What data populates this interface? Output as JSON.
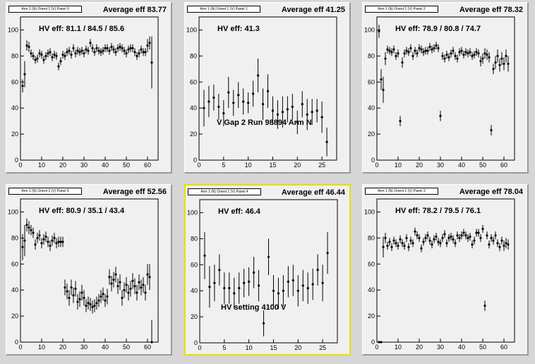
{
  "pads": [
    {
      "title": "Arm 1 (N) Orient 1 (V) Panel 0",
      "average": "Average eff 83.77",
      "hv": "HV eff:   81.1 / 84.5 / 85.6",
      "annotation": "",
      "selected": false,
      "xmax": 65,
      "xticks": [
        0,
        10,
        20,
        30,
        40,
        50,
        60
      ],
      "yticks": [
        0,
        20,
        40,
        60,
        80,
        100
      ]
    },
    {
      "title": "Arm 1 (N) Orient 1 (V) Panel 1",
      "average": "Average eff 41.25",
      "hv": "HV eff:   41.3",
      "annotation": "V Gap 2 Run 98894 Arm N",
      "selected": false,
      "xmax": 28,
      "xticks": [
        0,
        5,
        10,
        15,
        20,
        25
      ],
      "yticks": [
        0,
        20,
        40,
        60,
        80,
        100
      ]
    },
    {
      "title": "Arm 1 (N) Orient 1 (V) Panel 2",
      "average": "Average eff 78.32",
      "hv": "HV eff:   78.9 / 80.8 / 74.7",
      "annotation": "",
      "selected": false,
      "xmax": 65,
      "xticks": [
        0,
        10,
        20,
        30,
        40,
        50,
        60
      ],
      "yticks": [
        0,
        20,
        40,
        60,
        80,
        100
      ]
    },
    {
      "title": "Arm 1 (N) Orient 1 (V) Panel 5",
      "average": "Average eff 52.56",
      "hv": "HV eff:   80.9 / 35.1 / 43.4",
      "annotation": "",
      "selected": false,
      "xmax": 65,
      "xticks": [
        0,
        10,
        20,
        30,
        40,
        50,
        60
      ],
      "yticks": [
        0,
        20,
        40,
        60,
        80,
        100
      ]
    },
    {
      "title": "Arm 1 (N) Orient 1 (V) Panel 4",
      "average": "Average eff 46.44",
      "hv": "HV eff:   46.4",
      "annotation": "HV setting 4100 V",
      "selected": true,
      "xmax": 28,
      "xticks": [
        0,
        5,
        10,
        15,
        20,
        25
      ],
      "yticks": [
        0,
        20,
        40,
        60,
        80,
        100
      ]
    },
    {
      "title": "Arm 1 (N) Orient 1 (V) Panel 3",
      "average": "Average eff 78.04",
      "hv": "HV eff:   78.2 / 79.5 / 76.1",
      "annotation": "",
      "selected": false,
      "xmax": 65,
      "xticks": [
        0,
        10,
        20,
        30,
        40,
        50,
        60
      ],
      "yticks": [
        0,
        20,
        40,
        60,
        80,
        100
      ]
    }
  ],
  "chart_data": [
    {
      "type": "scatter",
      "title": "Average eff 83.77",
      "xlim": [
        0,
        65
      ],
      "ylim": [
        0,
        110
      ],
      "x": [
        1,
        2,
        3,
        4,
        5,
        6,
        7,
        8,
        9,
        10,
        11,
        12,
        13,
        14,
        15,
        16,
        17,
        18,
        19,
        20,
        21,
        22,
        23,
        24,
        25,
        26,
        27,
        28,
        29,
        30,
        31,
        32,
        33,
        34,
        35,
        36,
        37,
        38,
        39,
        40,
        41,
        42,
        43,
        44,
        45,
        46,
        47,
        48,
        49,
        50,
        51,
        52,
        53,
        54,
        55,
        56,
        57,
        58,
        59,
        60,
        61,
        62
      ],
      "y": [
        57,
        66,
        88,
        87,
        82,
        80,
        77,
        78,
        82,
        81,
        77,
        80,
        82,
        83,
        79,
        81,
        80,
        72,
        76,
        81,
        80,
        83,
        84,
        81,
        86,
        82,
        84,
        83,
        84,
        82,
        85,
        84,
        90,
        86,
        83,
        86,
        84,
        83,
        84,
        86,
        86,
        84,
        87,
        85,
        83,
        86,
        87,
        86,
        84,
        82,
        85,
        86,
        86,
        83,
        80,
        82,
        85,
        83,
        83,
        88,
        90,
        75
      ],
      "yerr": [
        5,
        10,
        4,
        4,
        3,
        3,
        3,
        3,
        3,
        3,
        3,
        3,
        3,
        3,
        3,
        3,
        3,
        3,
        3,
        3,
        3,
        3,
        3,
        3,
        3,
        3,
        3,
        3,
        3,
        3,
        3,
        3,
        3,
        3,
        3,
        3,
        3,
        3,
        3,
        3,
        3,
        3,
        3,
        3,
        3,
        3,
        3,
        3,
        3,
        3,
        3,
        3,
        3,
        3,
        3,
        3,
        3,
        3,
        3,
        5,
        5,
        20
      ]
    },
    {
      "type": "scatter",
      "title": "Average eff 41.25",
      "xlim": [
        0,
        28
      ],
      "ylim": [
        0,
        110
      ],
      "x": [
        1,
        2,
        3,
        4,
        5,
        6,
        7,
        8,
        9,
        10,
        11,
        12,
        13,
        14,
        15,
        16,
        17,
        18,
        19,
        20,
        21,
        22,
        23,
        24,
        25,
        26
      ],
      "y": [
        40,
        45,
        48,
        41,
        36,
        52,
        44,
        50,
        45,
        44,
        51,
        65,
        43,
        53,
        38,
        35,
        37,
        39,
        41,
        29,
        43,
        35,
        37,
        38,
        33,
        14
      ],
      "yerr": [
        14,
        12,
        10,
        10,
        10,
        12,
        10,
        10,
        10,
        8,
        10,
        13,
        12,
        13,
        11,
        11,
        12,
        10,
        10,
        9,
        10,
        12,
        10,
        9,
        12,
        11
      ]
    },
    {
      "type": "scatter",
      "title": "Average eff 78.32",
      "xlim": [
        0,
        65
      ],
      "ylim": [
        0,
        110
      ],
      "x": [
        1,
        2,
        3,
        4,
        5,
        6,
        7,
        8,
        9,
        10,
        11,
        12,
        13,
        14,
        15,
        16,
        17,
        18,
        19,
        20,
        21,
        22,
        23,
        24,
        25,
        26,
        27,
        28,
        29,
        30,
        31,
        32,
        33,
        34,
        35,
        36,
        37,
        38,
        39,
        40,
        41,
        42,
        43,
        44,
        45,
        46,
        47,
        48,
        49,
        50,
        51,
        52,
        53,
        54,
        55,
        56,
        57,
        58,
        59,
        60,
        61,
        62
      ],
      "y": [
        99,
        62,
        54,
        78,
        85,
        84,
        83,
        85,
        80,
        82,
        30,
        75,
        82,
        84,
        83,
        86,
        80,
        84,
        82,
        86,
        85,
        83,
        84,
        84,
        87,
        85,
        86,
        88,
        86,
        34,
        80,
        78,
        81,
        79,
        82,
        84,
        80,
        78,
        83,
        84,
        81,
        83,
        82,
        83,
        80,
        81,
        83,
        82,
        76,
        78,
        82,
        81,
        79,
        23,
        70,
        75,
        80,
        73,
        78,
        74,
        80,
        74
      ],
      "yerr": [
        5,
        8,
        10,
        5,
        3,
        3,
        3,
        3,
        3,
        3,
        4,
        4,
        3,
        3,
        3,
        3,
        3,
        3,
        3,
        3,
        3,
        3,
        3,
        3,
        3,
        3,
        3,
        3,
        3,
        4,
        3,
        3,
        3,
        3,
        3,
        3,
        3,
        3,
        3,
        3,
        3,
        3,
        3,
        3,
        3,
        3,
        3,
        3,
        4,
        4,
        4,
        4,
        4,
        4,
        4,
        5,
        5,
        5,
        5,
        5,
        5,
        6
      ]
    },
    {
      "type": "scatter",
      "title": "Average eff 52.56",
      "xlim": [
        0,
        65
      ],
      "ylim": [
        0,
        110
      ],
      "x": [
        1,
        2,
        3,
        4,
        5,
        6,
        7,
        8,
        9,
        10,
        11,
        12,
        13,
        14,
        15,
        16,
        17,
        18,
        19,
        20,
        21,
        22,
        23,
        24,
        25,
        26,
        27,
        28,
        29,
        30,
        31,
        32,
        33,
        34,
        35,
        36,
        37,
        38,
        39,
        40,
        41,
        42,
        43,
        44,
        45,
        46,
        47,
        48,
        49,
        50,
        51,
        52,
        53,
        54,
        55,
        56,
        57,
        58,
        59,
        60,
        61,
        62
      ],
      "y": [
        73,
        78,
        90,
        88,
        86,
        84,
        75,
        80,
        82,
        76,
        79,
        81,
        77,
        74,
        78,
        80,
        76,
        77,
        77,
        77,
        42,
        39,
        34,
        42,
        36,
        41,
        31,
        33,
        38,
        34,
        28,
        30,
        29,
        27,
        28,
        30,
        32,
        35,
        37,
        32,
        35,
        50,
        45,
        48,
        52,
        43,
        46,
        34,
        40,
        44,
        38,
        41,
        47,
        43,
        38,
        46,
        42,
        44,
        38,
        52,
        50,
        0
      ],
      "yerr": [
        10,
        12,
        5,
        5,
        4,
        4,
        4,
        4,
        4,
        4,
        4,
        4,
        4,
        4,
        4,
        4,
        4,
        4,
        4,
        4,
        6,
        6,
        6,
        6,
        6,
        6,
        6,
        6,
        6,
        6,
        5,
        5,
        5,
        5,
        5,
        5,
        5,
        5,
        5,
        5,
        6,
        6,
        6,
        6,
        6,
        6,
        6,
        6,
        6,
        6,
        6,
        6,
        6,
        6,
        6,
        6,
        6,
        6,
        6,
        8,
        10,
        17
      ]
    },
    {
      "type": "scatter",
      "title": "Average eff 46.44",
      "xlim": [
        0,
        28
      ],
      "ylim": [
        0,
        110
      ],
      "x": [
        1,
        2,
        3,
        4,
        5,
        6,
        7,
        8,
        9,
        10,
        11,
        12,
        13,
        14,
        15,
        16,
        17,
        18,
        19,
        20,
        21,
        22,
        23,
        24,
        25,
        26
      ],
      "y": [
        67,
        43,
        46,
        56,
        42,
        42,
        38,
        42,
        46,
        47,
        54,
        44,
        15,
        66,
        40,
        38,
        40,
        47,
        48,
        40,
        44,
        42,
        45,
        56,
        46,
        69
      ],
      "yerr": [
        18,
        16,
        14,
        12,
        12,
        12,
        12,
        12,
        11,
        11,
        12,
        12,
        10,
        14,
        12,
        12,
        12,
        12,
        12,
        12,
        12,
        12,
        12,
        12,
        14,
        16
      ]
    },
    {
      "type": "scatter",
      "title": "Average eff 78.04",
      "xlim": [
        0,
        65
      ],
      "ylim": [
        0,
        110
      ],
      "x": [
        1,
        2,
        3,
        4,
        5,
        6,
        7,
        8,
        9,
        10,
        11,
        12,
        13,
        14,
        15,
        16,
        17,
        18,
        19,
        20,
        21,
        22,
        23,
        24,
        25,
        26,
        27,
        28,
        29,
        30,
        31,
        32,
        33,
        34,
        35,
        36,
        37,
        38,
        39,
        40,
        41,
        42,
        43,
        44,
        45,
        46,
        47,
        48,
        49,
        50,
        51,
        52,
        53,
        54,
        55,
        56,
        57,
        58,
        59,
        60,
        61,
        62
      ],
      "y": [
        0,
        0,
        73,
        80,
        74,
        77,
        73,
        78,
        76,
        74,
        79,
        76,
        74,
        80,
        73,
        78,
        76,
        85,
        82,
        80,
        72,
        77,
        80,
        82,
        78,
        75,
        79,
        81,
        77,
        76,
        80,
        83,
        76,
        80,
        81,
        79,
        76,
        82,
        80,
        82,
        84,
        82,
        80,
        81,
        75,
        78,
        84,
        84,
        80,
        87,
        28,
        82,
        75,
        80,
        78,
        82,
        76,
        73,
        78,
        74,
        76,
        75
      ],
      "yerr": [
        0,
        0,
        8,
        4,
        3,
        3,
        3,
        3,
        3,
        3,
        3,
        3,
        3,
        3,
        3,
        3,
        3,
        3,
        3,
        3,
        3,
        3,
        3,
        3,
        3,
        3,
        3,
        3,
        3,
        3,
        3,
        3,
        3,
        3,
        3,
        3,
        3,
        3,
        3,
        3,
        3,
        3,
        3,
        3,
        3,
        3,
        3,
        3,
        3,
        3,
        4,
        3,
        3,
        3,
        3,
        3,
        3,
        3,
        3,
        4,
        4,
        4
      ]
    }
  ],
  "colors": {
    "canvas": "#d6d6d6",
    "pad": "#f0f0f0",
    "selected_border": "#e8e000",
    "marker": "#000000"
  }
}
